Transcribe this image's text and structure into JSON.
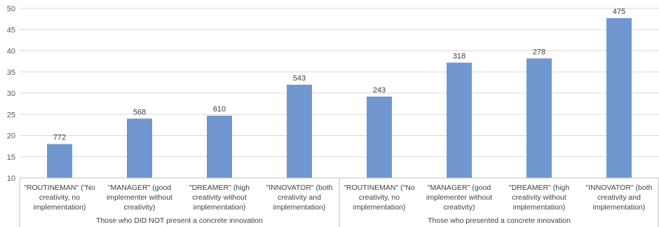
{
  "chart_data": {
    "type": "bar",
    "title": "",
    "xlabel": "",
    "ylabel": "",
    "ylim": [
      10,
      50
    ],
    "yticks": [
      10,
      15,
      20,
      25,
      30,
      35,
      40,
      45,
      50
    ],
    "grid": true,
    "legend": "none",
    "bar_color": "#7097D0",
    "grid_color": "#D9D9D9",
    "groups": [
      {
        "label": "Those who DID NOT present a concrete innovation",
        "categories": [
          [
            "\"ROUTINEMAN\" (\"No",
            "creativity, no",
            "implementation)"
          ],
          [
            "\"MANAGER\" (good",
            "implementer without",
            "creativity)"
          ],
          [
            "\"DREAMER\" (high",
            "creativity without",
            "implementation)"
          ],
          [
            "\"INNOVATOR\" (both",
            "creativity and",
            "implementation)"
          ]
        ],
        "values": [
          18,
          24,
          24.7,
          32
        ],
        "data_labels": [
          "772",
          "568",
          "610",
          "543"
        ]
      },
      {
        "label": "Those who presented a concrete innovation",
        "categories": [
          [
            "\"ROUTINEMAN\" (\"No",
            "creativity, no",
            "implementation)"
          ],
          [
            "\"MANAGER\" (good",
            "implementer without",
            "creativity)"
          ],
          [
            "\"DREAMER\" (high",
            "creativity without",
            "implementation)"
          ],
          [
            "\"INNOVATOR\" (both",
            "creativity and",
            "implementation)"
          ]
        ],
        "values": [
          29.2,
          37.2,
          38.2,
          47.7
        ],
        "data_labels": [
          "243",
          "318",
          "278",
          "475"
        ]
      }
    ]
  }
}
